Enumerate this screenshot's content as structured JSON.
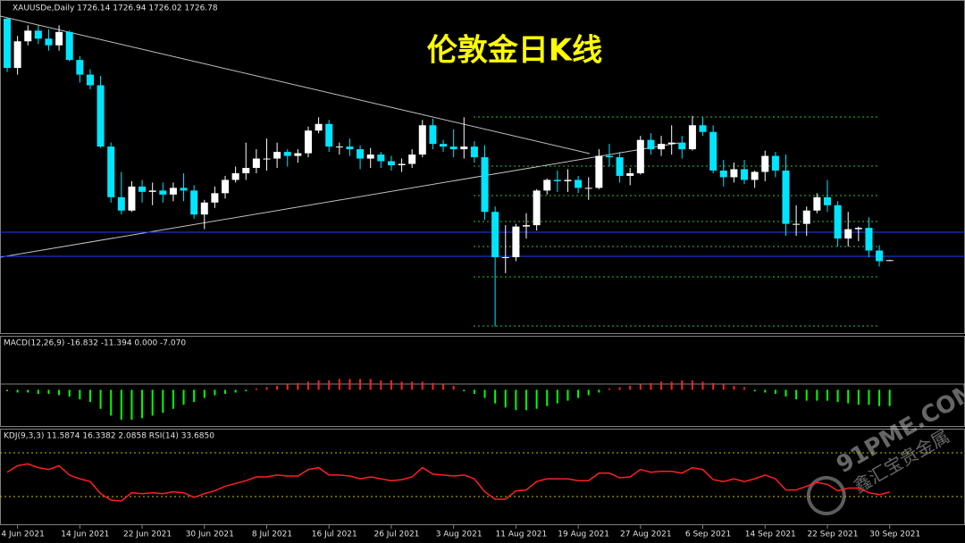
{
  "chart_data": [
    {
      "type": "candlestick",
      "title": "伦敦金日K线",
      "header": "XAUUSDe,Daily  1726.14 1726.94 1726.02 1726.78",
      "categories": [
        null,
        "4 Jun 2021",
        null,
        null,
        null,
        null,
        null,
        "14 Jun 2021",
        null,
        null,
        null,
        null,
        null,
        "22 Jun 2021",
        null,
        null,
        null,
        null,
        null,
        "30 Jun 2021",
        null,
        null,
        null,
        null,
        null,
        "8 Jul 2021",
        null,
        null,
        null,
        null,
        null,
        "16 Jul 2021",
        null,
        null,
        null,
        null,
        null,
        "26 Jul 2021",
        null,
        null,
        null,
        null,
        null,
        "3 Aug 2021",
        null,
        null,
        null,
        null,
        null,
        "11 Aug 2021",
        null,
        null,
        null,
        null,
        null,
        "19 Aug 2021",
        null,
        null,
        null,
        null,
        null,
        "27 Aug 2021",
        null,
        null,
        null,
        null,
        null,
        "6 Sep 2021",
        null,
        null,
        null,
        null,
        null,
        "14 Sep 2021",
        null,
        null,
        null,
        null,
        null,
        "22 Sep 2021",
        null,
        null,
        null,
        null,
        null,
        "30 Sep 2021"
      ],
      "open": [
        1908,
        1871,
        1891,
        1899,
        1893,
        1888,
        1898,
        1877,
        1866,
        1858,
        1812,
        1774,
        1764,
        1782,
        1778,
        1779,
        1776,
        1781,
        1779,
        1761,
        1770,
        1777,
        1787,
        1792,
        1796,
        1803,
        1803,
        1808,
        1805,
        1807,
        1824,
        1829,
        1812,
        1812,
        1810,
        1803,
        1806,
        1801,
        1798,
        1799,
        1806,
        1828,
        1814,
        1812,
        1810,
        1812,
        1804,
        1763,
        1729,
        1729,
        1752,
        1753,
        1779,
        1787,
        1786,
        1787,
        1781,
        1781,
        1805,
        1804,
        1790,
        1792,
        1817,
        1810,
        1814,
        1815,
        1810,
        1828,
        1823,
        1794,
        1789,
        1795,
        1787,
        1793,
        1805,
        1794,
        1754,
        1754,
        1764,
        1774,
        1768,
        1743,
        1750,
        1751,
        1734,
        1726.14
      ],
      "high": [
        1909,
        1895,
        1903,
        1903,
        1900,
        1903,
        1899,
        1880,
        1870,
        1865,
        1815,
        1793,
        1786,
        1787,
        1785,
        1785,
        1785,
        1792,
        1783,
        1772,
        1782,
        1790,
        1797,
        1815,
        1810,
        1818,
        1815,
        1810,
        1810,
        1827,
        1834,
        1832,
        1815,
        1818,
        1813,
        1811,
        1808,
        1805,
        1803,
        1810,
        1832,
        1833,
        1817,
        1825,
        1834,
        1816,
        1813,
        1767,
        1753,
        1754,
        1762,
        1780,
        1788,
        1794,
        1795,
        1790,
        1789,
        1810,
        1814,
        1808,
        1796,
        1820,
        1822,
        1820,
        1828,
        1820,
        1835,
        1834,
        1828,
        1802,
        1800,
        1802,
        1794,
        1809,
        1808,
        1806,
        1768,
        1767,
        1777,
        1787,
        1771,
        1763,
        1752,
        1759,
        1738,
        1726.94
      ],
      "low": [
        1868,
        1866,
        1888,
        1889,
        1884,
        1884,
        1876,
        1860,
        1855,
        1811,
        1770,
        1761,
        1763,
        1770,
        1768,
        1770,
        1771,
        1771,
        1758,
        1750,
        1766,
        1773,
        1785,
        1787,
        1792,
        1794,
        1796,
        1797,
        1800,
        1804,
        1822,
        1808,
        1806,
        1805,
        1795,
        1796,
        1796,
        1794,
        1793,
        1796,
        1804,
        1810,
        1808,
        1804,
        1803,
        1800,
        1757,
        1677,
        1717,
        1726,
        1743,
        1749,
        1776,
        1778,
        1778,
        1777,
        1772,
        1780,
        1797,
        1785,
        1783,
        1791,
        1806,
        1805,
        1806,
        1803,
        1809,
        1820,
        1792,
        1782,
        1785,
        1784,
        1781,
        1786,
        1789,
        1745,
        1745,
        1745,
        1762,
        1763,
        1737,
        1737,
        1741,
        1729,
        1722,
        1726.02
      ],
      "close": [
        1871,
        1891,
        1899,
        1893,
        1888,
        1898,
        1877,
        1866,
        1858,
        1812,
        1774,
        1764,
        1782,
        1778,
        1779,
        1776,
        1781,
        1779,
        1761,
        1770,
        1777,
        1787,
        1792,
        1796,
        1803,
        1803,
        1808,
        1805,
        1807,
        1824,
        1829,
        1812,
        1812,
        1810,
        1803,
        1806,
        1801,
        1798,
        1799,
        1806,
        1828,
        1814,
        1812,
        1810,
        1812,
        1804,
        1763,
        1729,
        1729,
        1752,
        1753,
        1779,
        1787,
        1786,
        1787,
        1781,
        1781,
        1805,
        1804,
        1790,
        1792,
        1817,
        1810,
        1814,
        1815,
        1810,
        1828,
        1823,
        1794,
        1789,
        1795,
        1787,
        1793,
        1805,
        1794,
        1754,
        1754,
        1764,
        1774,
        1768,
        1743,
        1750,
        1751,
        1734,
        1726,
        1726.78
      ],
      "up_color": "#ffffff",
      "down_color": "#00e5ff",
      "title_color": "#ffff00",
      "ylim": [
        1672,
        1922
      ]
    },
    {
      "type": "bar",
      "header": "MACD(12,26,9) -16.832 -11.394 0.000 -7.070",
      "values": [
        -1,
        -2,
        -2,
        -3,
        -3,
        -4,
        -5,
        -7,
        -9,
        -14,
        -19,
        -22,
        -22,
        -21,
        -19,
        -17,
        -14,
        -11,
        -9,
        -6,
        -4,
        -3,
        -2,
        -1,
        1,
        2,
        3,
        4,
        5,
        6,
        7,
        7,
        8,
        8,
        8,
        8,
        7,
        7,
        6,
        6,
        6,
        5,
        4,
        3,
        -1,
        -3,
        -6,
        -10,
        -13,
        -15,
        -15,
        -14,
        -12,
        -10,
        -8,
        -6,
        -4,
        -2,
        1,
        2,
        3,
        4,
        5,
        6,
        6,
        7,
        7,
        6,
        5,
        4,
        3,
        2,
        -1,
        -2,
        -3,
        -5,
        -7,
        -8,
        -8,
        -8,
        -9,
        -10,
        -11,
        -11,
        -12,
        -12
      ],
      "up_color": "#ff2020",
      "down_color": "#00ff00",
      "ylim": [
        -26,
        24
      ]
    },
    {
      "type": "line",
      "header": "KDJ(9,3,3) 11.5874 16.3382 2.0858 RSI(14) 33.6850",
      "values": [
        55,
        62,
        64,
        60,
        58,
        62,
        52,
        48,
        45,
        32,
        25,
        24,
        33,
        32,
        33,
        32,
        34,
        33,
        28,
        32,
        35,
        40,
        43,
        46,
        50,
        50,
        52,
        51,
        51,
        58,
        60,
        52,
        52,
        51,
        48,
        50,
        48,
        46,
        47,
        50,
        60,
        53,
        52,
        51,
        52,
        48,
        34,
        26,
        26,
        35,
        36,
        45,
        48,
        48,
        48,
        46,
        46,
        54,
        54,
        49,
        50,
        58,
        55,
        56,
        56,
        54,
        60,
        58,
        47,
        45,
        48,
        45,
        48,
        52,
        48,
        36,
        36,
        40,
        44,
        42,
        35,
        38,
        38,
        33,
        31,
        33.685
      ],
      "color": "#ff2020",
      "ylim": [
        0,
        100
      ]
    }
  ],
  "watermark": {
    "site": "91PME.COM",
    "name": "鑫汇宝贵金属"
  }
}
